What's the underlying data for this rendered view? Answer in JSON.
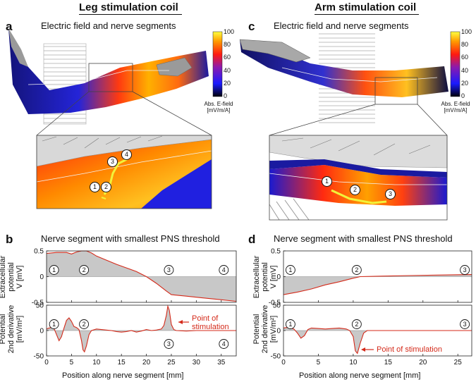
{
  "headings": {
    "leg": "Leg stimulation coil",
    "arm": "Arm stimulation coil"
  },
  "panels": {
    "a": "a",
    "b": "b",
    "c": "c",
    "d": "d"
  },
  "efield_title": "Electric field and nerve segments",
  "nerve_title": "Nerve segment with smallest PNS threshold",
  "colorbar": {
    "ticks": [
      "100",
      "80",
      "60",
      "40",
      "20",
      "0"
    ],
    "caption_line1": "Abs. E-field",
    "caption_line2": "[mV/m/A]"
  },
  "markers": {
    "m1": "1",
    "m2": "2",
    "m3": "3",
    "m4": "4"
  },
  "ylabels": {
    "extracellular": [
      "Extracellular",
      "potential",
      "V [mV]"
    ],
    "derivative": [
      "Potential",
      "2nd derivative",
      "[mV/m²]"
    ]
  },
  "point_of_stimulation_b": [
    "Point of",
    "stimulation"
  ],
  "point_of_stimulation_d": "Point of stimulation",
  "xlabel": "Position along nerve segment [mm]",
  "chart_data": [
    {
      "type": "area",
      "panel": "b-top",
      "xlim": [
        0,
        38
      ],
      "ylim": [
        -0.5,
        0.5
      ],
      "xticks": [
        0,
        5,
        10,
        15,
        20,
        25,
        30,
        35
      ],
      "yticks": [
        "0.5",
        "0",
        "-0.5"
      ],
      "x": [
        0,
        2,
        4,
        5,
        6,
        7,
        8,
        9,
        10,
        12,
        14,
        16,
        18,
        20,
        22,
        24,
        25,
        28,
        31,
        34,
        38
      ],
      "y": [
        0.45,
        0.47,
        0.47,
        0.44,
        0.48,
        0.5,
        0.5,
        0.46,
        0.4,
        0.32,
        0.24,
        0.17,
        0.1,
        0.0,
        -0.13,
        -0.28,
        -0.35,
        -0.38,
        -0.41,
        -0.44,
        -0.48
      ],
      "markers": [
        {
          "label": "1",
          "x": 1.5
        },
        {
          "label": "2",
          "x": 7.5
        },
        {
          "label": "3",
          "x": 24.5
        },
        {
          "label": "4",
          "x": 35.5
        }
      ]
    },
    {
      "type": "area",
      "panel": "b-bottom",
      "xlim": [
        0,
        38
      ],
      "ylim": [
        -50,
        50
      ],
      "xticks": [
        0,
        5,
        10,
        15,
        20,
        25,
        30,
        35
      ],
      "yticks": [
        "50",
        "0",
        "-50"
      ],
      "x": [
        0,
        0.5,
        1,
        1.5,
        2,
        2.5,
        3,
        3.5,
        4,
        4.5,
        5,
        5.5,
        6,
        6.5,
        7,
        7.3,
        7.6,
        8,
        8.5,
        9,
        10,
        11,
        12,
        13,
        14,
        15,
        16,
        17,
        18,
        19,
        20,
        21,
        22,
        23,
        23.5,
        24,
        24.3,
        24.6,
        25,
        25.5,
        26,
        28,
        30,
        32,
        35,
        38
      ],
      "y": [
        3,
        5,
        6,
        4,
        -8,
        -20,
        -12,
        5,
        20,
        25,
        18,
        8,
        6,
        2,
        -20,
        -38,
        -42,
        -30,
        -8,
        0,
        3,
        2,
        1,
        0,
        -2,
        -3,
        -2,
        0,
        -3,
        -1,
        2,
        0,
        1,
        3,
        10,
        30,
        48,
        40,
        12,
        2,
        0,
        -1,
        0,
        0,
        0,
        0
      ],
      "markers": [
        {
          "label": "1",
          "x": 1.5
        },
        {
          "label": "2",
          "x": 7.5
        },
        {
          "label": "3",
          "x": 24.5
        },
        {
          "label": "4",
          "x": 35.5
        }
      ]
    },
    {
      "type": "area",
      "panel": "d-top",
      "xlim": [
        0,
        27
      ],
      "ylim": [
        -0.5,
        0.5
      ],
      "xticks": [
        0,
        5,
        10,
        15,
        20,
        25
      ],
      "yticks": [
        "0.5",
        "0",
        "-0.5"
      ],
      "x": [
        0,
        2,
        4,
        6,
        8,
        10,
        11,
        14,
        18,
        22,
        27
      ],
      "y": [
        -0.35,
        -0.3,
        -0.24,
        -0.16,
        -0.1,
        -0.03,
        0.0,
        0.01,
        0.02,
        0.03,
        0.04
      ],
      "markers": [
        {
          "label": "1",
          "x": 1
        },
        {
          "label": "2",
          "x": 10.5
        },
        {
          "label": "3",
          "x": 26
        }
      ]
    },
    {
      "type": "area",
      "panel": "d-bottom",
      "xlim": [
        0,
        27
      ],
      "ylim": [
        -50,
        50
      ],
      "xticks": [
        0,
        5,
        10,
        15,
        20,
        25
      ],
      "yticks": [
        "50",
        "0",
        "-50"
      ],
      "x": [
        0,
        0.5,
        1,
        1.5,
        2,
        2.5,
        3,
        3.5,
        4,
        5,
        6,
        7,
        8,
        9,
        9.5,
        10,
        10.3,
        10.6,
        11,
        11.5,
        12,
        14,
        16,
        18,
        20,
        23,
        27
      ],
      "y": [
        5,
        6,
        5,
        3,
        -5,
        -15,
        -10,
        2,
        5,
        4,
        3,
        4,
        5,
        3,
        0,
        -12,
        -40,
        -45,
        -25,
        -5,
        0,
        0,
        0,
        0,
        0,
        0,
        0
      ],
      "markers": [
        {
          "label": "1",
          "x": 1
        },
        {
          "label": "2",
          "x": 10.5
        },
        {
          "label": "3",
          "x": 26
        }
      ]
    }
  ]
}
